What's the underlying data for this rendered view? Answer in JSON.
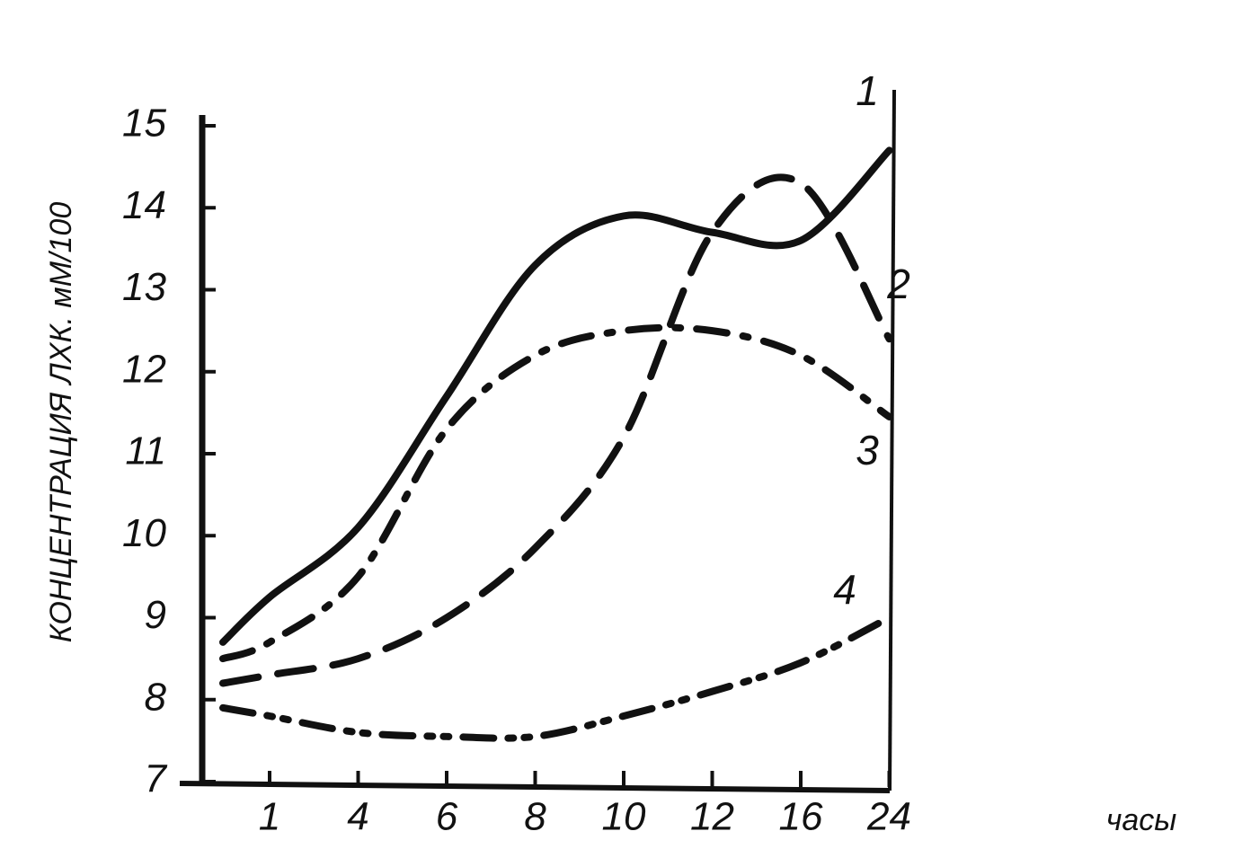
{
  "chart_data": {
    "type": "line",
    "y_label": "КОНЦЕНТРАЦИЯ ЛХК. мМ/100",
    "x_label": "часы",
    "categories": [
      null,
      "1",
      "4",
      "6",
      "8",
      "10",
      "12",
      "16",
      "24"
    ],
    "ylim": [
      7,
      15
    ],
    "yticks": [
      7,
      8,
      9,
      10,
      11,
      12,
      13,
      14,
      15
    ],
    "series": [
      {
        "name": "1",
        "color": "#111111",
        "dash": "solid",
        "values": [
          8.7,
          9.25,
          10.1,
          11.7,
          13.3,
          13.9,
          13.7,
          13.6,
          14.7
        ]
      },
      {
        "name": "2",
        "color": "#111111",
        "dash": "dashed",
        "values": [
          8.2,
          8.3,
          8.5,
          9.0,
          9.85,
          11.2,
          13.7,
          14.3,
          12.4
        ]
      },
      {
        "name": "3",
        "color": "#111111",
        "dash": "dashdot",
        "values": [
          8.5,
          8.7,
          9.5,
          11.3,
          12.2,
          12.5,
          12.5,
          12.2,
          11.45
        ]
      },
      {
        "name": "4",
        "color": "#111111",
        "dash": "dashdotdot",
        "values": [
          7.9,
          7.8,
          7.6,
          7.55,
          7.55,
          7.8,
          8.1,
          8.45,
          9.0
        ]
      }
    ]
  }
}
